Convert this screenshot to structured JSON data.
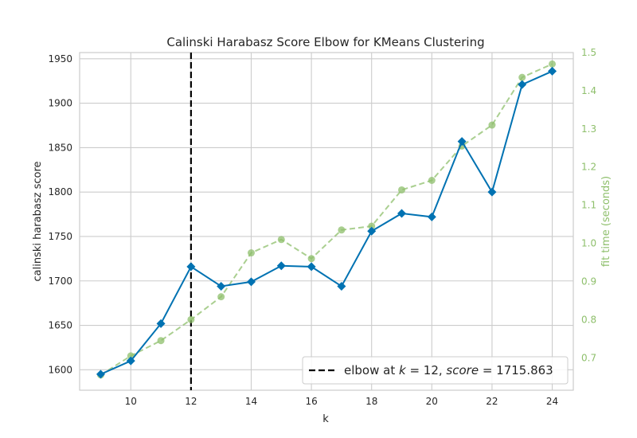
{
  "chart_data": {
    "type": "line",
    "title": "Calinski Harabasz Score Elbow for KMeans Clustering",
    "xlabel": "k",
    "ylabel": "calinski harabasz score",
    "y2label": "fit time (seconds)",
    "x": [
      9,
      10,
      11,
      12,
      13,
      14,
      15,
      16,
      17,
      18,
      19,
      20,
      21,
      22,
      23,
      24
    ],
    "xticks": [
      10,
      12,
      14,
      16,
      18,
      20,
      22,
      24
    ],
    "xlim": [
      8.3,
      24.7
    ],
    "ylim": [
      1577,
      1957
    ],
    "yticks": [
      1600,
      1650,
      1700,
      1750,
      1800,
      1850,
      1900,
      1950
    ],
    "y2lim": [
      0.615,
      1.5
    ],
    "y2ticks": [
      0.7,
      0.8,
      0.9,
      1.0,
      1.1,
      1.2,
      1.3,
      1.4,
      1.5
    ],
    "grid": true,
    "series": [
      {
        "name": "",
        "axis": "left",
        "marker": "diamond",
        "line": "solid",
        "color": "#0072B2",
        "values": [
          1595,
          1610,
          1652,
          1716,
          1694,
          1699,
          1717,
          1716,
          1694,
          1756,
          1776,
          1772,
          1857,
          1800,
          1921,
          1936
        ]
      },
      {
        "name": "",
        "axis": "right",
        "marker": "circle",
        "line": "dashed",
        "color": "#8ebf6b",
        "values": [
          0.655,
          0.705,
          0.745,
          0.8,
          0.86,
          0.975,
          1.01,
          0.96,
          1.035,
          1.045,
          1.14,
          1.165,
          1.255,
          1.31,
          1.435,
          1.47
        ]
      }
    ],
    "elbow": {
      "k": 12,
      "score": 1715.863,
      "legend_label": "elbow at $k=12$, $score=1715.863$",
      "legend_prefix": "elbow at ",
      "legend_k_var": "k",
      "legend_k_eq": " = 12, ",
      "legend_score_var": "score",
      "legend_score_eq": " = 1715.863",
      "legend_position": "lower-right"
    }
  },
  "colors": {
    "primary": "#0072B2",
    "secondary": "#8ebf6b",
    "secondary_text": "#8ebf6b",
    "grid": "#cccccc",
    "text": "#262626"
  }
}
